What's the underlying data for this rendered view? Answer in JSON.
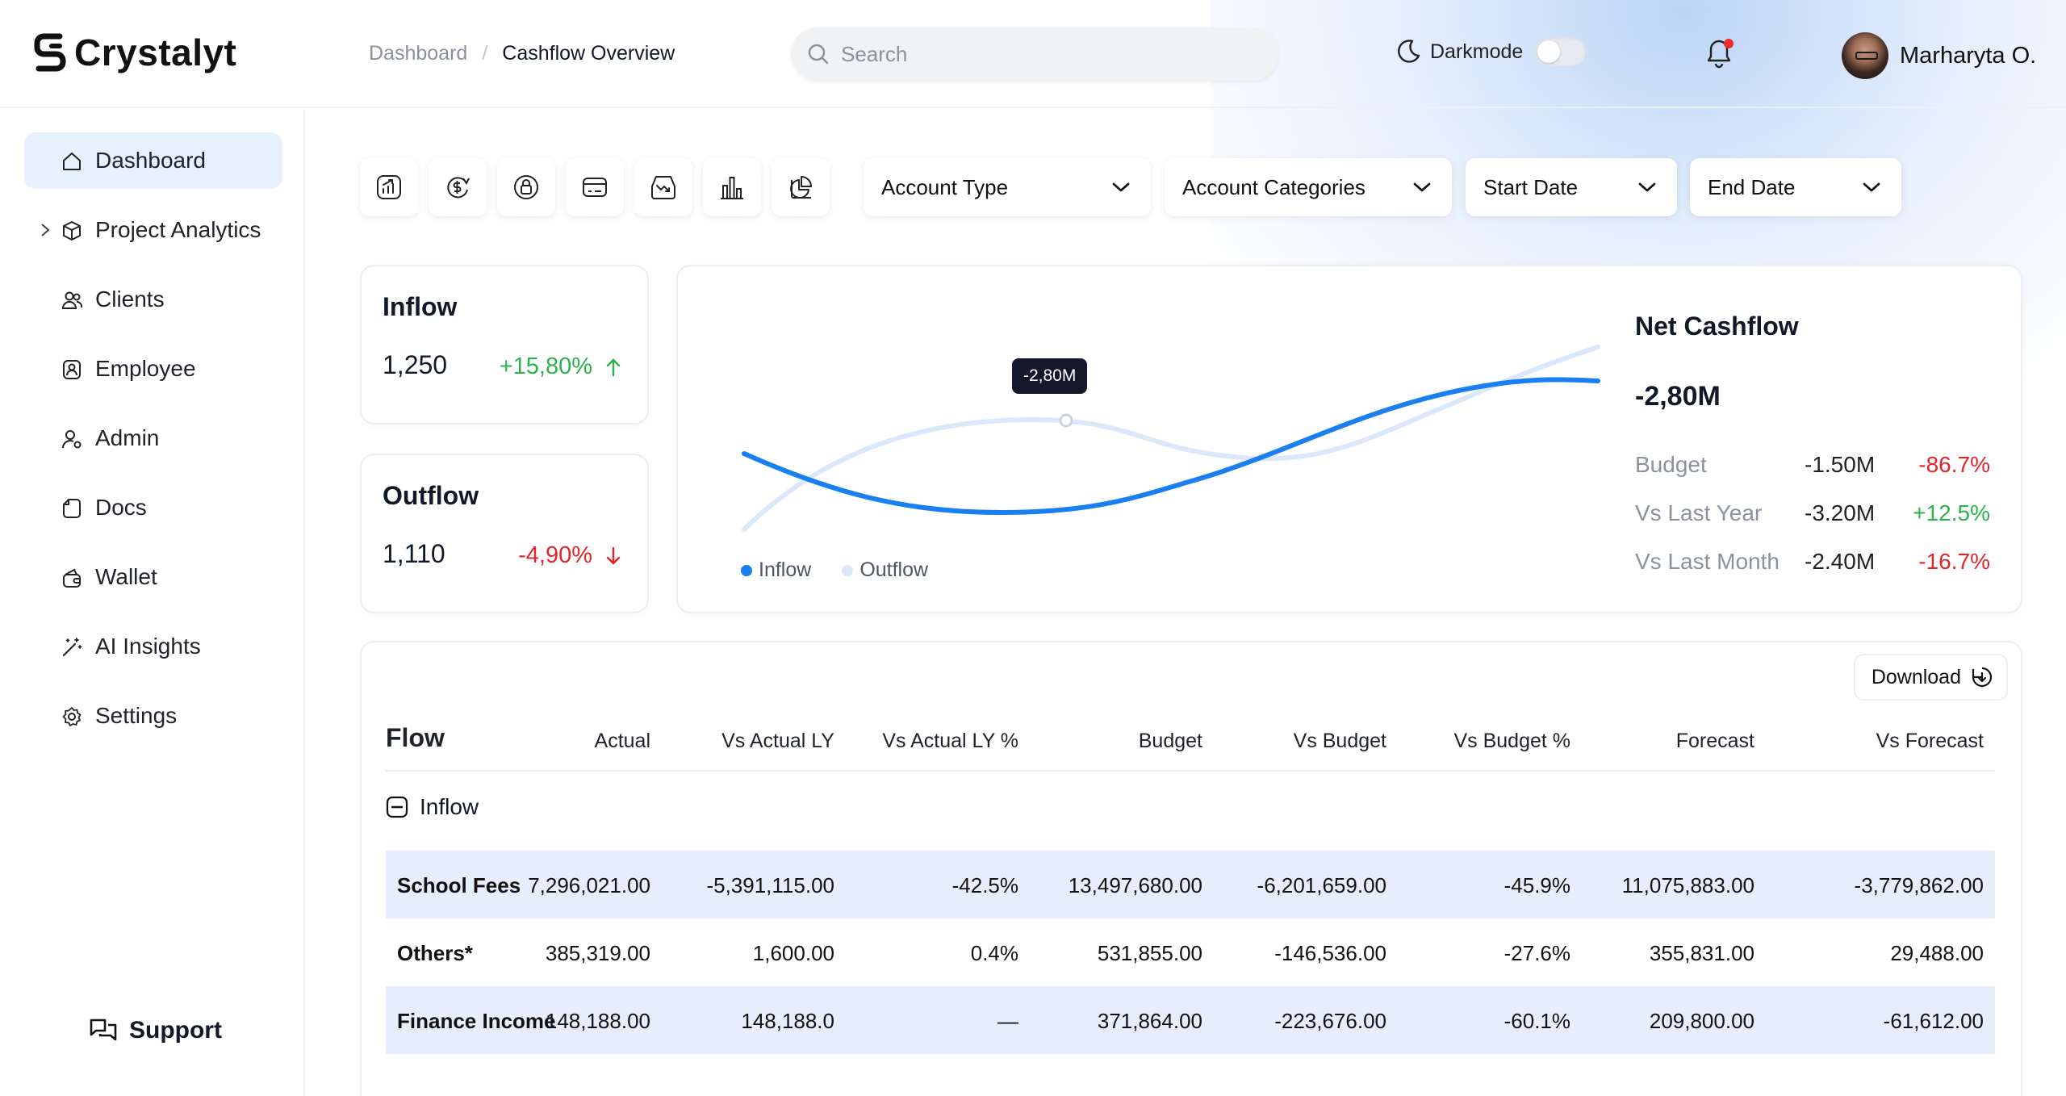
{
  "app": {
    "name": "Crystalyt"
  },
  "breadcrumb": {
    "parent": "Dashboard",
    "separator": "/",
    "current": "Cashflow Overview"
  },
  "search": {
    "placeholder": "Search",
    "value": ""
  },
  "darkmode": {
    "label": "Darkmode",
    "enabled": false
  },
  "user": {
    "name": "Marharyta O."
  },
  "sidebar": {
    "items": [
      {
        "label": "Dashboard",
        "icon": "home-icon",
        "active": true
      },
      {
        "label": "Project Analytics",
        "icon": "cube-icon",
        "expandable": true
      },
      {
        "label": "Clients",
        "icon": "users-icon"
      },
      {
        "label": "Employee",
        "icon": "id-badge-icon"
      },
      {
        "label": "Admin",
        "icon": "user-gear-icon"
      },
      {
        "label": "Docs",
        "icon": "document-icon"
      },
      {
        "label": "Wallet",
        "icon": "wallet-icon"
      },
      {
        "label": "AI Insights",
        "icon": "magic-wand-icon"
      },
      {
        "label": "Settings",
        "icon": "gear-icon"
      }
    ],
    "support_label": "Support"
  },
  "toolbar": {
    "icons": [
      "chart-growth-icon",
      "dollar-refresh-icon",
      "lock-icon",
      "credit-card-icon",
      "trend-down-icon",
      "bar-chart-icon",
      "pie-chart-icon"
    ]
  },
  "filters": [
    {
      "label": "Account Type"
    },
    {
      "label": "Account Categories"
    },
    {
      "label": "Start Date"
    },
    {
      "label": "End Date"
    }
  ],
  "kpis": {
    "inflow": {
      "title": "Inflow",
      "value": "1,250",
      "change": "+15,80%",
      "direction": "up"
    },
    "outflow": {
      "title": "Outflow",
      "value": "1,110",
      "change": "-4,90%",
      "direction": "down"
    }
  },
  "chart": {
    "tooltip": "-2,80M",
    "legend": [
      {
        "name": "Inflow",
        "color": "#1a7ff0"
      },
      {
        "name": "Outflow",
        "color": "#dbe8fb"
      }
    ]
  },
  "net_cashflow": {
    "title": "Net Cashflow",
    "value": "-2,80M",
    "rows": [
      {
        "label": "Budget",
        "value": "-1.50M",
        "change": "-86.7%",
        "trend": "neg"
      },
      {
        "label": "Vs Last Year",
        "value": "-3.20M",
        "change": "+12.5%",
        "trend": "pos"
      },
      {
        "label": "Vs Last Month",
        "value": "-2.40M",
        "change": "-16.7%",
        "trend": "neg"
      }
    ]
  },
  "table": {
    "download_label": "Download",
    "columns": [
      "Flow",
      "Actual",
      "Vs Actual LY",
      "Vs Actual LY %",
      "Budget",
      "Vs Budget",
      "Vs Budget %",
      "Forecast",
      "Vs Forecast"
    ],
    "group_label": "Inflow",
    "rows": [
      {
        "name": "School Fees",
        "actual": "7,296,021.00",
        "vs_actual_ly": "-5,391,115.00",
        "vs_actual_ly_pct": "-42.5%",
        "budget": "13,497,680.00",
        "vs_budget": "-6,201,659.00",
        "vs_budget_pct": "-45.9%",
        "forecast": "11,075,883.00",
        "vs_forecast": "-3,779,862.00"
      },
      {
        "name": "Others*",
        "actual": "385,319.00",
        "vs_actual_ly": "1,600.00",
        "vs_actual_ly_pct": "0.4%",
        "budget": "531,855.00",
        "vs_budget": "-146,536.00",
        "vs_budget_pct": "-27.6%",
        "forecast": "355,831.00",
        "vs_forecast": "29,488.00"
      },
      {
        "name": "Finance Income",
        "actual": "148,188.00",
        "vs_actual_ly": "148,188.0",
        "vs_actual_ly_pct": "—",
        "budget": "371,864.00",
        "vs_budget": "-223,676.00",
        "vs_budget_pct": "-60.1%",
        "forecast": "209,800.00",
        "vs_forecast": "-61,612.00"
      }
    ]
  }
}
